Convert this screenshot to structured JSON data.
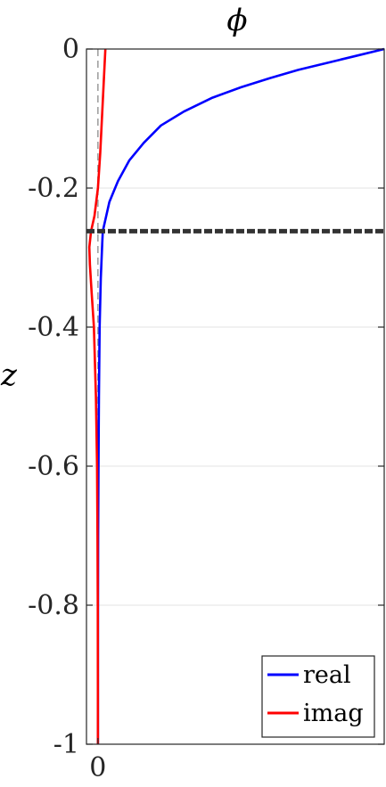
{
  "chart_data": {
    "type": "line",
    "title": "ϕ",
    "xlabel": "",
    "ylabel": "z",
    "xlim": [
      -0.04,
      1.0
    ],
    "ylim": [
      -1,
      0
    ],
    "grid": true,
    "legend_position": "bottom-right",
    "y_ticks": [
      "0",
      "-0.2",
      "-0.4",
      "-0.6",
      "-0.8",
      "-1"
    ],
    "y_tick_values": [
      0,
      -0.2,
      -0.4,
      -0.6,
      -0.8,
      -1
    ],
    "x_ticks": [
      "0"
    ],
    "x_tick_values": [
      0
    ],
    "zero_reference_line": true,
    "interface_depth": -0.262,
    "series": [
      {
        "name": "real",
        "color": "#0000ff",
        "points": [
          [
            0.0,
            -1.0
          ],
          [
            0.0001,
            -0.9
          ],
          [
            0.0003,
            -0.8
          ],
          [
            0.0008,
            -0.7
          ],
          [
            0.002,
            -0.6
          ],
          [
            0.0035,
            -0.5
          ],
          [
            0.006,
            -0.4
          ],
          [
            0.01,
            -0.33
          ],
          [
            0.015,
            -0.28
          ],
          [
            0.017,
            -0.262
          ],
          [
            0.04,
            -0.22
          ],
          [
            0.07,
            -0.19
          ],
          [
            0.11,
            -0.16
          ],
          [
            0.16,
            -0.135
          ],
          [
            0.22,
            -0.11
          ],
          [
            0.3,
            -0.09
          ],
          [
            0.4,
            -0.07
          ],
          [
            0.5,
            -0.055
          ],
          [
            0.6,
            -0.042
          ],
          [
            0.7,
            -0.03
          ],
          [
            0.8,
            -0.02
          ],
          [
            0.9,
            -0.01
          ],
          [
            1.0,
            0.0
          ]
        ]
      },
      {
        "name": "imag",
        "color": "#ff0000",
        "points": [
          [
            0.0,
            -1.0
          ],
          [
            -0.0002,
            -0.9
          ],
          [
            -0.0005,
            -0.8
          ],
          [
            -0.0015,
            -0.7
          ],
          [
            -0.003,
            -0.6
          ],
          [
            -0.007,
            -0.5
          ],
          [
            -0.014,
            -0.4
          ],
          [
            -0.022,
            -0.35
          ],
          [
            -0.028,
            -0.31
          ],
          [
            -0.03,
            -0.285
          ],
          [
            -0.024,
            -0.262
          ],
          [
            -0.012,
            -0.24
          ],
          [
            0.0,
            -0.2
          ],
          [
            0.008,
            -0.15
          ],
          [
            0.014,
            -0.1
          ],
          [
            0.02,
            -0.05
          ],
          [
            0.026,
            0.0
          ]
        ]
      }
    ]
  }
}
